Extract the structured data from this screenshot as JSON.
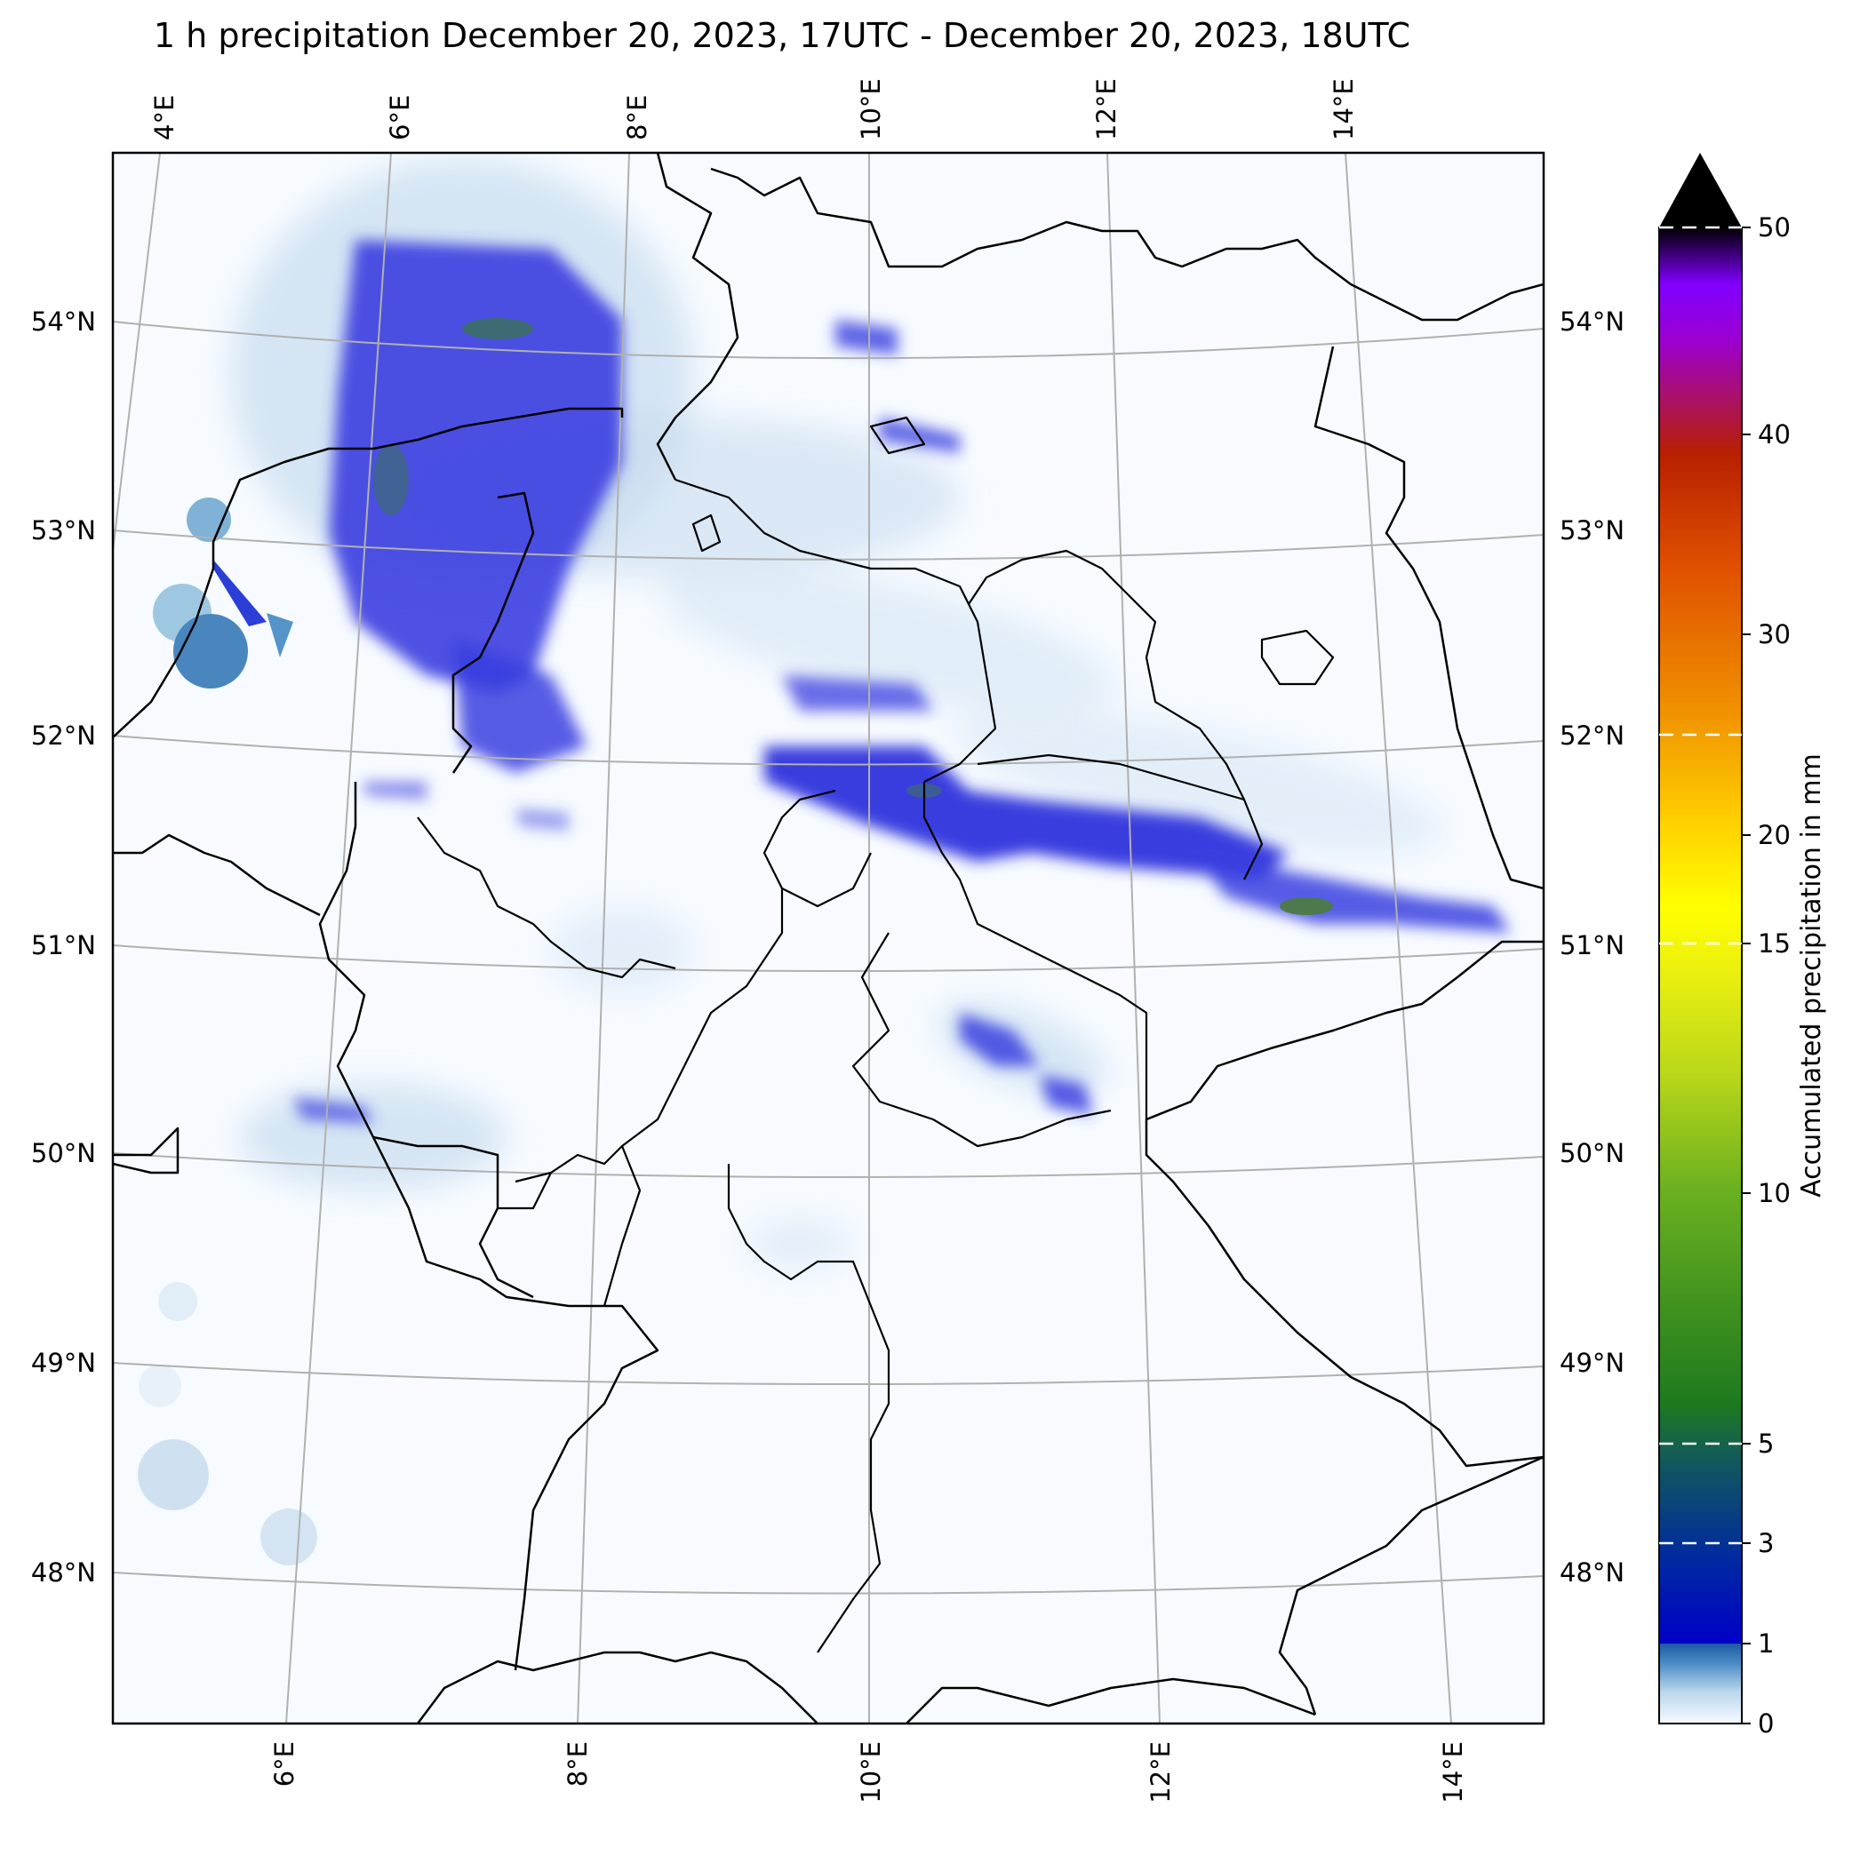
{
  "title": "1 h precipitation December 20, 2023, 17UTC - December 20, 2023, 18UTC",
  "map": {
    "top_lon_labels": [
      "4°E",
      "6°E",
      "8°E",
      "10°E",
      "12°E",
      "14°E"
    ],
    "bottom_lon_labels": [
      "6°E",
      "8°E",
      "10°E",
      "12°E",
      "14°E"
    ],
    "left_lat_labels": [
      "54°N",
      "53°N",
      "52°N",
      "51°N",
      "50°N",
      "49°N",
      "48°N"
    ],
    "right_lat_labels": [
      "54°N",
      "53°N",
      "52°N",
      "51°N",
      "50°N",
      "49°N",
      "48°N"
    ],
    "background_color": "#f7fbff",
    "border_color": "#000000",
    "graticule_color": "#b0b0b0"
  },
  "colorbar": {
    "label": "Accumulated precipitation in mm",
    "ticks": [
      "0",
      "1",
      "3",
      "5",
      "10",
      "15",
      "20",
      "30",
      "40",
      "50"
    ],
    "max_value": 50,
    "extend": "max",
    "dashed_levels": [
      3,
      5,
      15,
      25,
      50
    ]
  }
}
